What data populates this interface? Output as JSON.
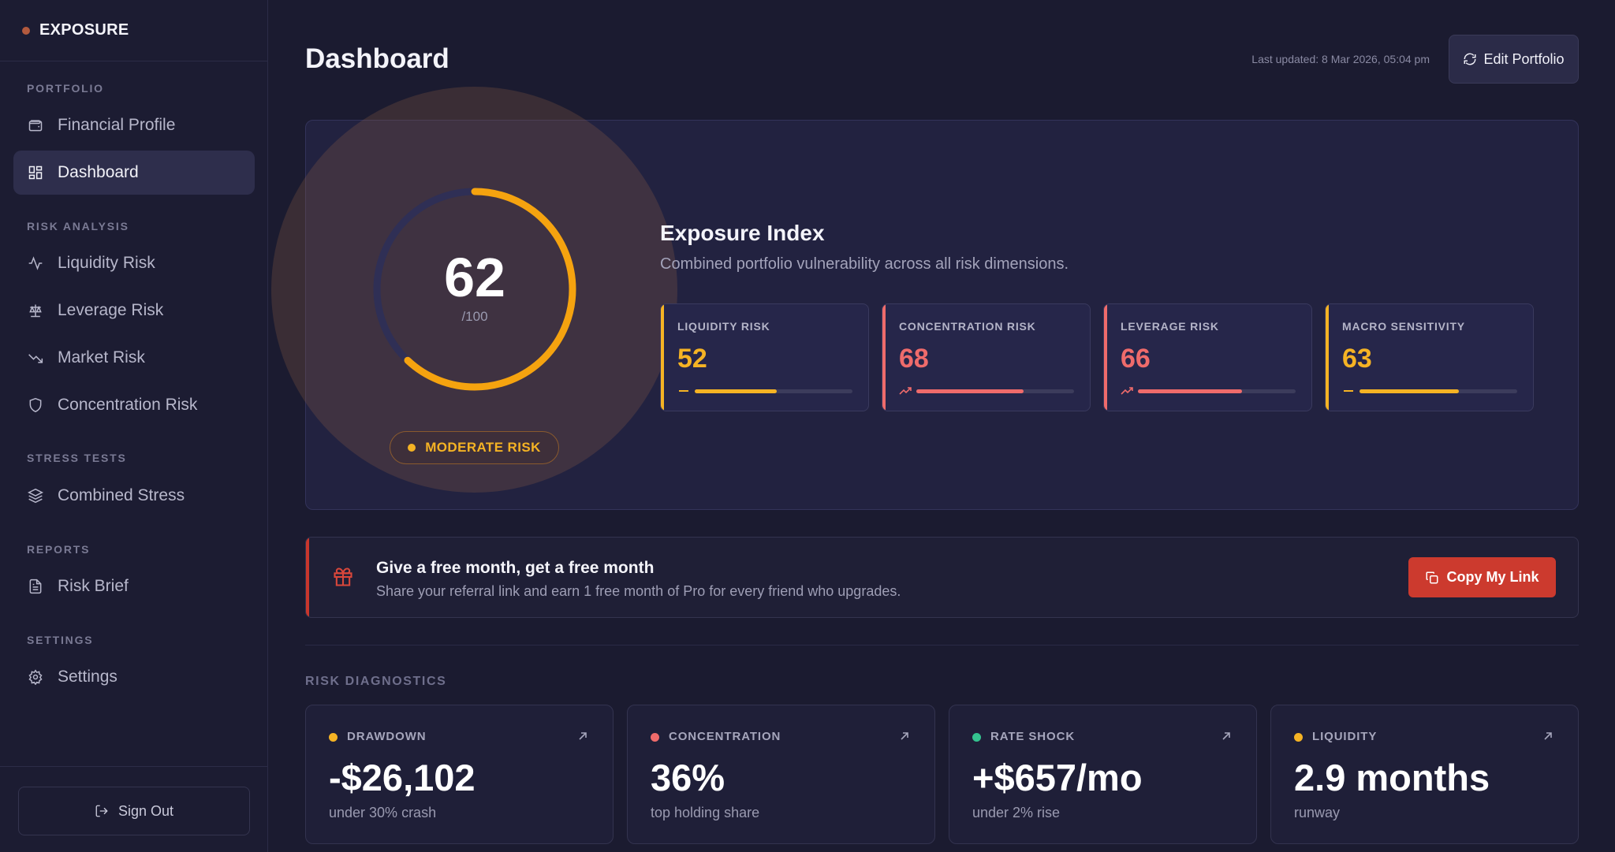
{
  "brand": {
    "name": "EXPOSURE"
  },
  "sidebar": {
    "sections": [
      {
        "title": "PORTFOLIO"
      },
      {
        "title": "RISK ANALYSIS"
      },
      {
        "title": "STRESS TESTS"
      },
      {
        "title": "REPORTS"
      },
      {
        "title": "SETTINGS"
      }
    ],
    "items": [
      {
        "label": "Financial Profile",
        "icon": "wallet-icon"
      },
      {
        "label": "Dashboard",
        "icon": "grid-icon",
        "active": true
      },
      {
        "label": "Liquidity Risk",
        "icon": "activity-icon"
      },
      {
        "label": "Leverage Risk",
        "icon": "scale-icon"
      },
      {
        "label": "Market Risk",
        "icon": "trending-down-icon"
      },
      {
        "label": "Concentration Risk",
        "icon": "shield-icon"
      },
      {
        "label": "Combined Stress",
        "icon": "layers-icon"
      },
      {
        "label": "Risk Brief",
        "icon": "file-text-icon"
      },
      {
        "label": "Settings",
        "icon": "gear-icon"
      }
    ],
    "signout_label": "Sign Out"
  },
  "header": {
    "title": "Dashboard",
    "last_updated": "Last updated: 8 Mar 2026, 05:04 pm",
    "edit_label": "Edit Portfolio"
  },
  "index": {
    "score": "62",
    "max": "/100",
    "score_fraction": 0.62,
    "risk_level": "MODERATE RISK",
    "title": "Exposure Index",
    "subtitle": "Combined portfolio vulnerability across all risk dimensions.",
    "gauge_color": "#f5a30f"
  },
  "metrics": [
    {
      "label": "LIQUIDITY RISK",
      "value": "52",
      "fraction": 0.52,
      "color": "#f5b324",
      "trend": "flat"
    },
    {
      "label": "CONCENTRATION RISK",
      "value": "68",
      "fraction": 0.68,
      "color": "#ef6b6b",
      "trend": "up"
    },
    {
      "label": "LEVERAGE RISK",
      "value": "66",
      "fraction": 0.66,
      "color": "#ef6b6b",
      "trend": "up"
    },
    {
      "label": "MACRO SENSITIVITY",
      "value": "63",
      "fraction": 0.63,
      "color": "#f5b324",
      "trend": "flat"
    }
  ],
  "referral": {
    "title": "Give a free month, get a free month",
    "subtitle": "Share your referral link and earn 1 free month of Pro for every friend who upgrades.",
    "button_label": "Copy My Link"
  },
  "diagnostics": {
    "title": "RISK DIAGNOSTICS",
    "cards": [
      {
        "label": "DRAWDOWN",
        "value": "-$26,102",
        "sub": "under 30% crash",
        "color": "#f5b324"
      },
      {
        "label": "CONCENTRATION",
        "value": "36%",
        "sub": "top holding share",
        "color": "#ef6b6b"
      },
      {
        "label": "RATE SHOCK",
        "value": "+$657/mo",
        "sub": "under 2% rise",
        "color": "#34c38f"
      },
      {
        "label": "LIQUIDITY",
        "value": "2.9 months",
        "sub": "runway",
        "color": "#f5b324"
      }
    ]
  }
}
